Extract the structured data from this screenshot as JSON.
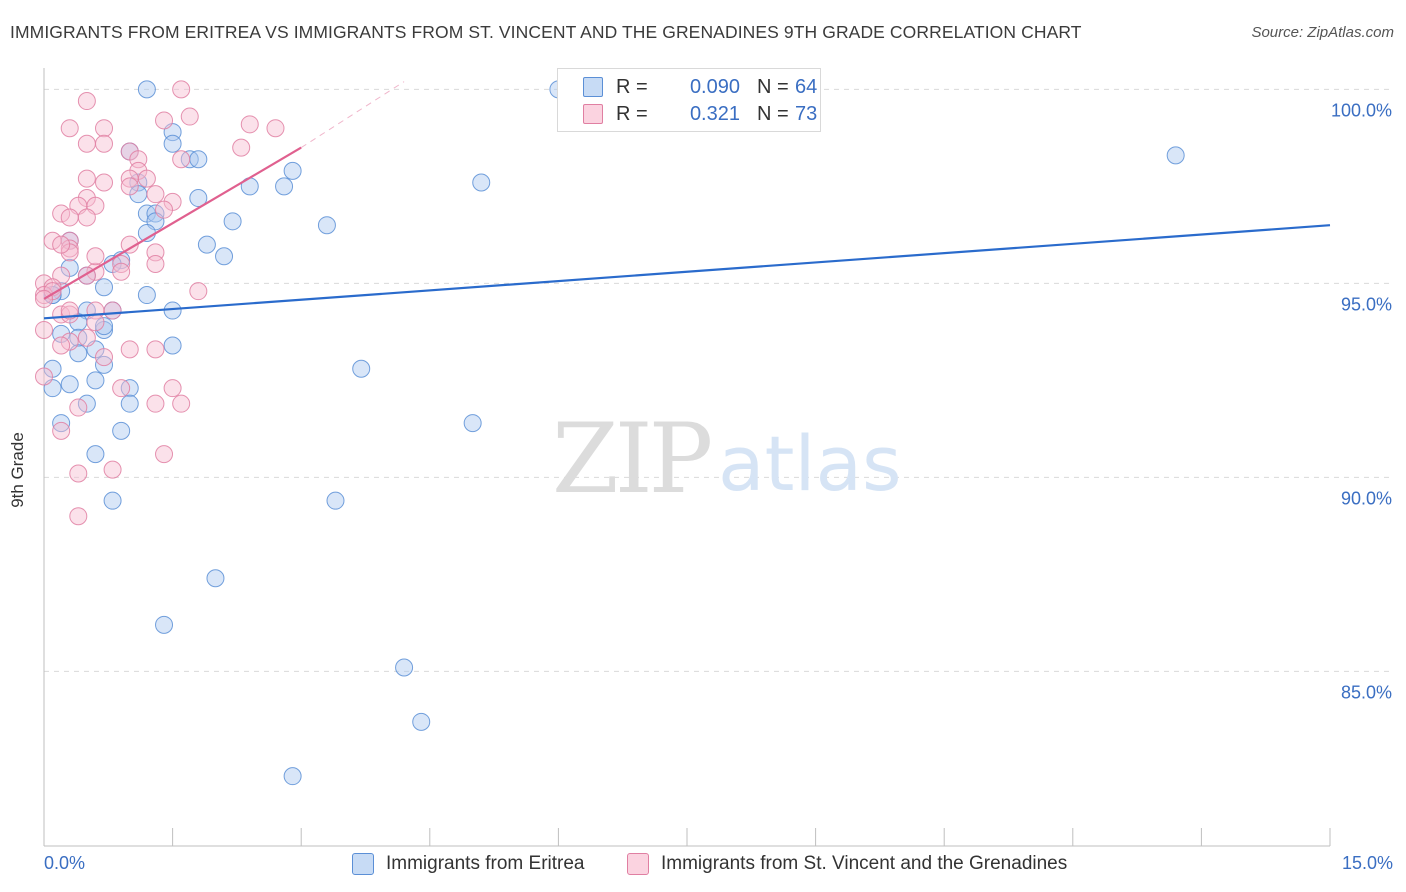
{
  "header": {
    "title": "IMMIGRANTS FROM ERITREA VS IMMIGRANTS FROM ST. VINCENT AND THE GRENADINES 9TH GRADE CORRELATION CHART",
    "source": "Source: ZipAtlas.com"
  },
  "watermark": {
    "zip": "ZIP",
    "atlas": "atlas"
  },
  "legend": {
    "rows": [
      {
        "r_label": "R =",
        "r_value": "0.090",
        "n_label": "N =",
        "n_value": "64"
      },
      {
        "r_label": "R =",
        "r_value": "0.321",
        "n_label": "N =",
        "n_value": "73"
      }
    ]
  },
  "bottom_legend": {
    "series1": "Immigrants from Eritrea",
    "series2": "Immigrants from St. Vincent and the Grenadines"
  },
  "colors": {
    "series1_fill": "#aac8f0",
    "series1_stroke": "#5b8fd6",
    "series1_line": "#2a6bcc",
    "series2_fill": "#f7bcd0",
    "series2_stroke": "#e07fa2",
    "series2_line": "#e0608f",
    "axis_text": "#3a6ec2",
    "grid": "#d9d9d9"
  },
  "chart_data": {
    "type": "scatter",
    "title": "IMMIGRANTS FROM ERITREA VS IMMIGRANTS FROM ST. VINCENT AND THE GRENADINES 9TH GRADE CORRELATION CHART",
    "ylabel": "9th Grade",
    "xlabel": "",
    "x_unit": "%",
    "xlim": [
      0,
      15
    ],
    "ylim": [
      80.5,
      100.5
    ],
    "x_tick_labels": [
      "0.0%",
      "15.0%"
    ],
    "y_ticks": [
      85,
      90,
      95,
      100
    ],
    "y_tick_labels": [
      "85.0%",
      "90.0%",
      "95.0%",
      "100.0%"
    ],
    "grid": "horizontal dashed",
    "legend_position": "top-center",
    "series": [
      {
        "name": "Immigrants from Eritrea",
        "R": 0.09,
        "N": 64,
        "trend": {
          "x": [
            0,
            15
          ],
          "y": [
            94.1,
            96.5
          ]
        },
        "points": [
          [
            1.2,
            100.0
          ],
          [
            6.0,
            100.0
          ],
          [
            1.5,
            98.9
          ],
          [
            1.5,
            98.6
          ],
          [
            1.0,
            98.4
          ],
          [
            1.7,
            98.2
          ],
          [
            1.8,
            98.2
          ],
          [
            2.9,
            97.9
          ],
          [
            1.1,
            97.6
          ],
          [
            2.4,
            97.5
          ],
          [
            2.8,
            97.5
          ],
          [
            5.1,
            97.6
          ],
          [
            1.1,
            97.3
          ],
          [
            1.8,
            97.2
          ],
          [
            1.2,
            96.8
          ],
          [
            1.3,
            96.8
          ],
          [
            1.3,
            96.6
          ],
          [
            2.2,
            96.6
          ],
          [
            3.3,
            96.5
          ],
          [
            1.2,
            96.3
          ],
          [
            0.3,
            96.1
          ],
          [
            1.9,
            96.0
          ],
          [
            2.1,
            95.7
          ],
          [
            0.9,
            95.6
          ],
          [
            0.3,
            95.4
          ],
          [
            0.8,
            95.5
          ],
          [
            0.7,
            94.9
          ],
          [
            1.2,
            94.7
          ],
          [
            0.2,
            94.8
          ],
          [
            0.1,
            94.7
          ],
          [
            0.5,
            94.3
          ],
          [
            0.8,
            94.3
          ],
          [
            0.4,
            94.0
          ],
          [
            0.7,
            93.8
          ],
          [
            0.4,
            93.6
          ],
          [
            0.6,
            93.3
          ],
          [
            1.5,
            93.4
          ],
          [
            0.4,
            93.2
          ],
          [
            0.7,
            92.9
          ],
          [
            0.1,
            92.8
          ],
          [
            3.7,
            92.8
          ],
          [
            0.6,
            92.5
          ],
          [
            1.0,
            92.3
          ],
          [
            0.1,
            92.3
          ],
          [
            0.5,
            91.9
          ],
          [
            1.0,
            91.9
          ],
          [
            0.2,
            91.4
          ],
          [
            5.0,
            91.4
          ],
          [
            0.9,
            91.2
          ],
          [
            0.6,
            90.6
          ],
          [
            0.8,
            89.4
          ],
          [
            3.4,
            89.4
          ],
          [
            2.0,
            87.4
          ],
          [
            1.4,
            86.2
          ],
          [
            4.2,
            85.1
          ],
          [
            4.4,
            83.7
          ],
          [
            2.9,
            82.3
          ],
          [
            13.2,
            98.3
          ],
          [
            0.1,
            94.7
          ],
          [
            0.3,
            92.4
          ],
          [
            0.2,
            93.7
          ],
          [
            1.5,
            94.3
          ],
          [
            0.7,
            93.9
          ],
          [
            0.5,
            95.2
          ]
        ]
      },
      {
        "name": "Immigrants from St. Vincent and the Grenadines",
        "R": 0.321,
        "N": 73,
        "trend": {
          "x": [
            0,
            3.0
          ],
          "y": [
            94.6,
            98.5
          ]
        },
        "trend_extension": {
          "x": [
            3.0,
            4.2
          ],
          "y": [
            98.5,
            100.2
          ]
        },
        "points": [
          [
            1.6,
            100.0
          ],
          [
            0.5,
            99.7
          ],
          [
            1.4,
            99.2
          ],
          [
            1.7,
            99.3
          ],
          [
            2.4,
            99.1
          ],
          [
            2.7,
            99.0
          ],
          [
            0.3,
            99.0
          ],
          [
            0.7,
            99.0
          ],
          [
            0.5,
            98.6
          ],
          [
            0.7,
            98.6
          ],
          [
            2.3,
            98.5
          ],
          [
            1.0,
            98.4
          ],
          [
            1.1,
            98.2
          ],
          [
            1.6,
            98.2
          ],
          [
            1.1,
            97.9
          ],
          [
            1.0,
            97.7
          ],
          [
            0.5,
            97.7
          ],
          [
            0.7,
            97.6
          ],
          [
            1.0,
            97.5
          ],
          [
            1.3,
            97.3
          ],
          [
            0.5,
            97.2
          ],
          [
            1.5,
            97.1
          ],
          [
            0.6,
            97.0
          ],
          [
            0.4,
            97.0
          ],
          [
            0.2,
            96.8
          ],
          [
            0.5,
            96.7
          ],
          [
            0.3,
            96.7
          ],
          [
            0.1,
            96.1
          ],
          [
            0.3,
            96.1
          ],
          [
            0.3,
            95.9
          ],
          [
            1.0,
            96.0
          ],
          [
            0.3,
            95.8
          ],
          [
            1.3,
            95.8
          ],
          [
            0.9,
            95.5
          ],
          [
            1.3,
            95.5
          ],
          [
            0.6,
            95.3
          ],
          [
            0.2,
            95.2
          ],
          [
            0.0,
            95.0
          ],
          [
            0.1,
            94.9
          ],
          [
            1.8,
            94.8
          ],
          [
            0.0,
            94.7
          ],
          [
            0.6,
            94.3
          ],
          [
            0.2,
            94.2
          ],
          [
            0.3,
            94.2
          ],
          [
            0.6,
            94.0
          ],
          [
            0.0,
            93.8
          ],
          [
            0.3,
            93.5
          ],
          [
            0.2,
            93.4
          ],
          [
            1.0,
            93.3
          ],
          [
            1.3,
            93.3
          ],
          [
            0.0,
            92.6
          ],
          [
            1.5,
            92.3
          ],
          [
            0.9,
            92.3
          ],
          [
            1.3,
            91.9
          ],
          [
            1.6,
            91.9
          ],
          [
            0.4,
            91.8
          ],
          [
            0.2,
            91.2
          ],
          [
            1.4,
            90.6
          ],
          [
            0.8,
            90.2
          ],
          [
            0.4,
            90.1
          ],
          [
            0.4,
            89.0
          ],
          [
            0.1,
            94.8
          ],
          [
            0.5,
            95.2
          ],
          [
            0.8,
            94.3
          ],
          [
            0.9,
            95.3
          ],
          [
            0.2,
            96.0
          ],
          [
            1.4,
            96.9
          ],
          [
            0.5,
            93.6
          ],
          [
            0.0,
            94.6
          ],
          [
            0.7,
            93.1
          ],
          [
            0.6,
            95.7
          ],
          [
            1.2,
            97.7
          ],
          [
            0.3,
            94.3
          ]
        ]
      }
    ]
  }
}
